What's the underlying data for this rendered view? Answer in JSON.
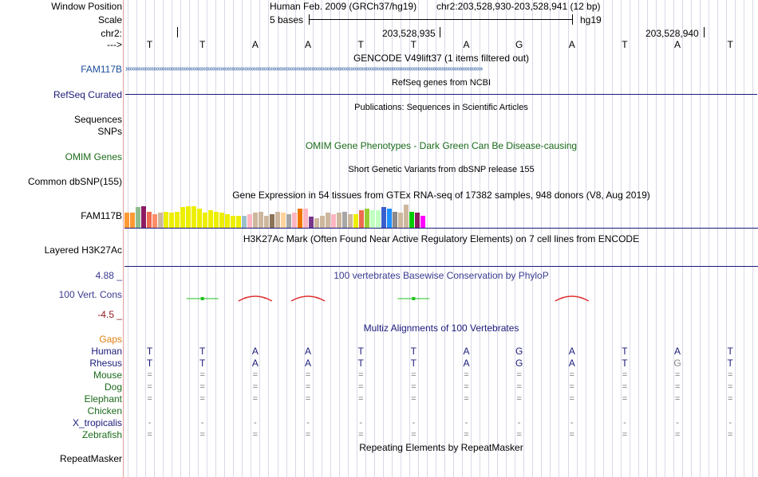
{
  "colors": {
    "navy": "#1a1a7a",
    "orange": "#e08010",
    "green": "#1a6a1a",
    "phylop_label": "#3a3a90",
    "phylop_low": "#8b1a1a",
    "conservation_peak": "#e03030",
    "conservation_flat": "#20c020",
    "gap": "#e08010",
    "grid": "#d9d9e8"
  },
  "window": {
    "label": "Window Position",
    "assembly": "Human Feb. 2009 (GRCh37/hg19)",
    "position": "chr2:203,528,930-203,528,941 (12 bp)"
  },
  "scale": {
    "label": "Scale",
    "left_text": "5 bases",
    "right_text": "hg19"
  },
  "chrom": {
    "label": "chr2:",
    "ticks": [
      "203,528,935",
      "203,528,940"
    ]
  },
  "sequence": {
    "arrow_label": "--->",
    "bases": [
      "T",
      "T",
      "A",
      "A",
      "T",
      "T",
      "A",
      "G",
      "A",
      "T",
      "A",
      "T"
    ]
  },
  "tracks": {
    "gencode": {
      "title": "GENCODE V49lift37 (1 items filtered out)",
      "gene": "FAM117B"
    },
    "refseq": {
      "title": "RefSeq genes from NCBI",
      "label": "RefSeq Curated"
    },
    "publications": {
      "title": "Publications: Sequences in Scientific Articles",
      "label1": "Sequences",
      "label2": "SNPs"
    },
    "omim": {
      "title": "OMIM Gene Phenotypes - Dark Green Can Be Disease-causing",
      "label": "OMIM Genes"
    },
    "dbsnp": {
      "title": "Short Genetic Variants from dbSNP release 155",
      "label": "Common dbSNP(155)"
    },
    "gtex": {
      "title": "Gene Expression in 54 tissues from GTEx RNA-seq of 17382 samples, 948 donors (V8, Aug 2019)",
      "label": "FAM117B"
    },
    "h3k27ac": {
      "title": "H3K27Ac Mark (Often Found Near Active Regulatory Elements) on 7 cell lines from ENCODE",
      "label": "Layered H3K27Ac"
    },
    "phylop": {
      "title": "100 vertebrates Basewise Conservation by PhyloP",
      "label": "100 Vert. Cons",
      "max": "4.88 _",
      "min": "-4.5 _"
    },
    "multiz": {
      "title": "Multiz Alignments of 100 Vertebrates",
      "gaps_label": "Gaps",
      "species": [
        {
          "name": "Human",
          "row": [
            "T",
            "T",
            "A",
            "A",
            "T",
            "T",
            "A",
            "G",
            "A",
            "T",
            "A",
            "T"
          ]
        },
        {
          "name": "Rhesus",
          "row": [
            "T",
            "T",
            "A",
            "A",
            "T",
            "T",
            "A",
            "G",
            "A",
            "T",
            "G",
            "T"
          ]
        },
        {
          "name": "Mouse",
          "row": [
            "=",
            "=",
            "=",
            "=",
            "=",
            "=",
            "=",
            "=",
            "=",
            "=",
            "=",
            "="
          ]
        },
        {
          "name": "Dog",
          "row": [
            "=",
            "=",
            "=",
            "=",
            "=",
            "=",
            "=",
            "=",
            "=",
            "=",
            "=",
            "="
          ]
        },
        {
          "name": "Elephant",
          "row": [
            "=",
            "=",
            "=",
            "=",
            "=",
            "=",
            "=",
            "=",
            "=",
            "=",
            "=",
            "="
          ]
        },
        {
          "name": "Chicken",
          "row": [
            "",
            "",
            "",
            "",
            "",
            "",
            "",
            "",
            "",
            "",
            "",
            ""
          ]
        },
        {
          "name": "X_tropicalis",
          "row": [
            "-",
            "-",
            "-",
            "-",
            "-",
            "-",
            "-",
            "-",
            "-",
            "-",
            "-",
            "-"
          ]
        },
        {
          "name": "Zebrafish",
          "row": [
            "=",
            "=",
            "=",
            "=",
            "=",
            "=",
            "=",
            "=",
            "=",
            "=",
            "=",
            "="
          ]
        }
      ]
    },
    "repeatmasker": {
      "title": "Repeating Elements by RepeatMasker",
      "label": "RepeatMasker"
    }
  },
  "gtex_bars": {
    "tissues": 54,
    "values": [
      0.55,
      0.55,
      0.75,
      0.8,
      0.6,
      0.5,
      0.55,
      0.6,
      0.55,
      0.6,
      0.75,
      0.8,
      0.8,
      0.7,
      0.55,
      0.65,
      0.6,
      0.55,
      0.5,
      0.45,
      0.45,
      0.45,
      0.5,
      0.55,
      0.6,
      0.45,
      0.5,
      0.6,
      0.55,
      0.5,
      0.55,
      0.7,
      0.7,
      0.4,
      0.35,
      0.45,
      0.55,
      0.5,
      0.55,
      0.6,
      0.5,
      0.5,
      0.65,
      0.7,
      0.65,
      0.65,
      0.75,
      0.7,
      0.6,
      0.55,
      0.85,
      0.6,
      0.55,
      0.45
    ],
    "colors": [
      "#ff9933",
      "#ff9933",
      "#8fbc8f",
      "#8b1c62",
      "#ee6a50",
      "#ff8c69",
      "#cdb79e",
      "#eeee00",
      "#eeee00",
      "#eeee00",
      "#eeee00",
      "#eeee00",
      "#eeee00",
      "#eeee00",
      "#eeee00",
      "#eeee00",
      "#eeee00",
      "#eeee00",
      "#eeee00",
      "#eeee00",
      "#eeee00",
      "#9ac0cd",
      "#ffb6c1",
      "#cdb79e",
      "#cdb79e",
      "#cdb79e",
      "#8b7355",
      "#cdb79e",
      "#ffd39b",
      "#a6a6a6",
      "#ffb6c1",
      "#ee7600",
      "#ffb6c1",
      "#7a378b",
      "#cdb79e",
      "#cdb79e",
      "#cdb79e",
      "#ffb6c1",
      "#cdb79e",
      "#a6a6a6",
      "#cdb79e",
      "#eeee00",
      "#ee6a50",
      "#9acd32",
      "#c1ffc1",
      "#c1ffc1",
      "#3a5fcd",
      "#1e90ff",
      "#8b8989",
      "#cdb79e",
      "#cdb79e",
      "#00cd00",
      "#8b1c62",
      "#ff00ff"
    ]
  }
}
